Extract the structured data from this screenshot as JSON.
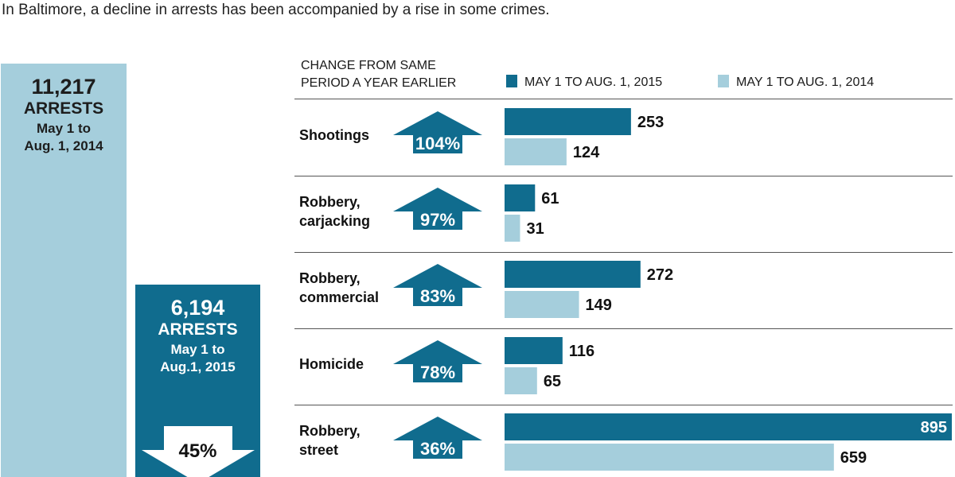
{
  "subtitle": "In Baltimore, a decline in arrests has been accompanied by a rise in some crimes.",
  "arrests": {
    "y2014": {
      "count": "11,217",
      "unit": "ARRESTS",
      "period_line1": "May 1 to",
      "period_line2": "Aug. 1, 2014",
      "color": "#a5cedc"
    },
    "y2015": {
      "count": "6,194",
      "unit": "ARRESTS",
      "period_line1": "May 1 to",
      "period_line2": "Aug.1, 2015",
      "color": "#106c8e"
    },
    "change_label": "45%"
  },
  "chart_data": {
    "type": "bar",
    "orientation": "horizontal",
    "header_line1": "CHANGE FROM SAME",
    "header_line2": "PERIOD A YEAR EARLIER",
    "categories": [
      [
        "Shootings"
      ],
      [
        "Robbery,",
        "carjacking"
      ],
      [
        "Robbery,",
        "commercial"
      ],
      [
        "Homicide"
      ],
      [
        "Robbery,",
        "street"
      ]
    ],
    "changes": [
      "104%",
      "97%",
      "83%",
      "78%",
      "36%"
    ],
    "series": [
      {
        "name": "MAY 1 TO AUG. 1, 2015",
        "values": [
          253,
          61,
          272,
          116,
          895
        ],
        "color": "#106c8e"
      },
      {
        "name": "MAY 1 TO AUG. 1, 2014",
        "values": [
          124,
          31,
          149,
          65,
          659
        ],
        "color": "#a5cedc"
      }
    ],
    "xlim": [
      0,
      895
    ],
    "grid": false,
    "legend": "top"
  }
}
